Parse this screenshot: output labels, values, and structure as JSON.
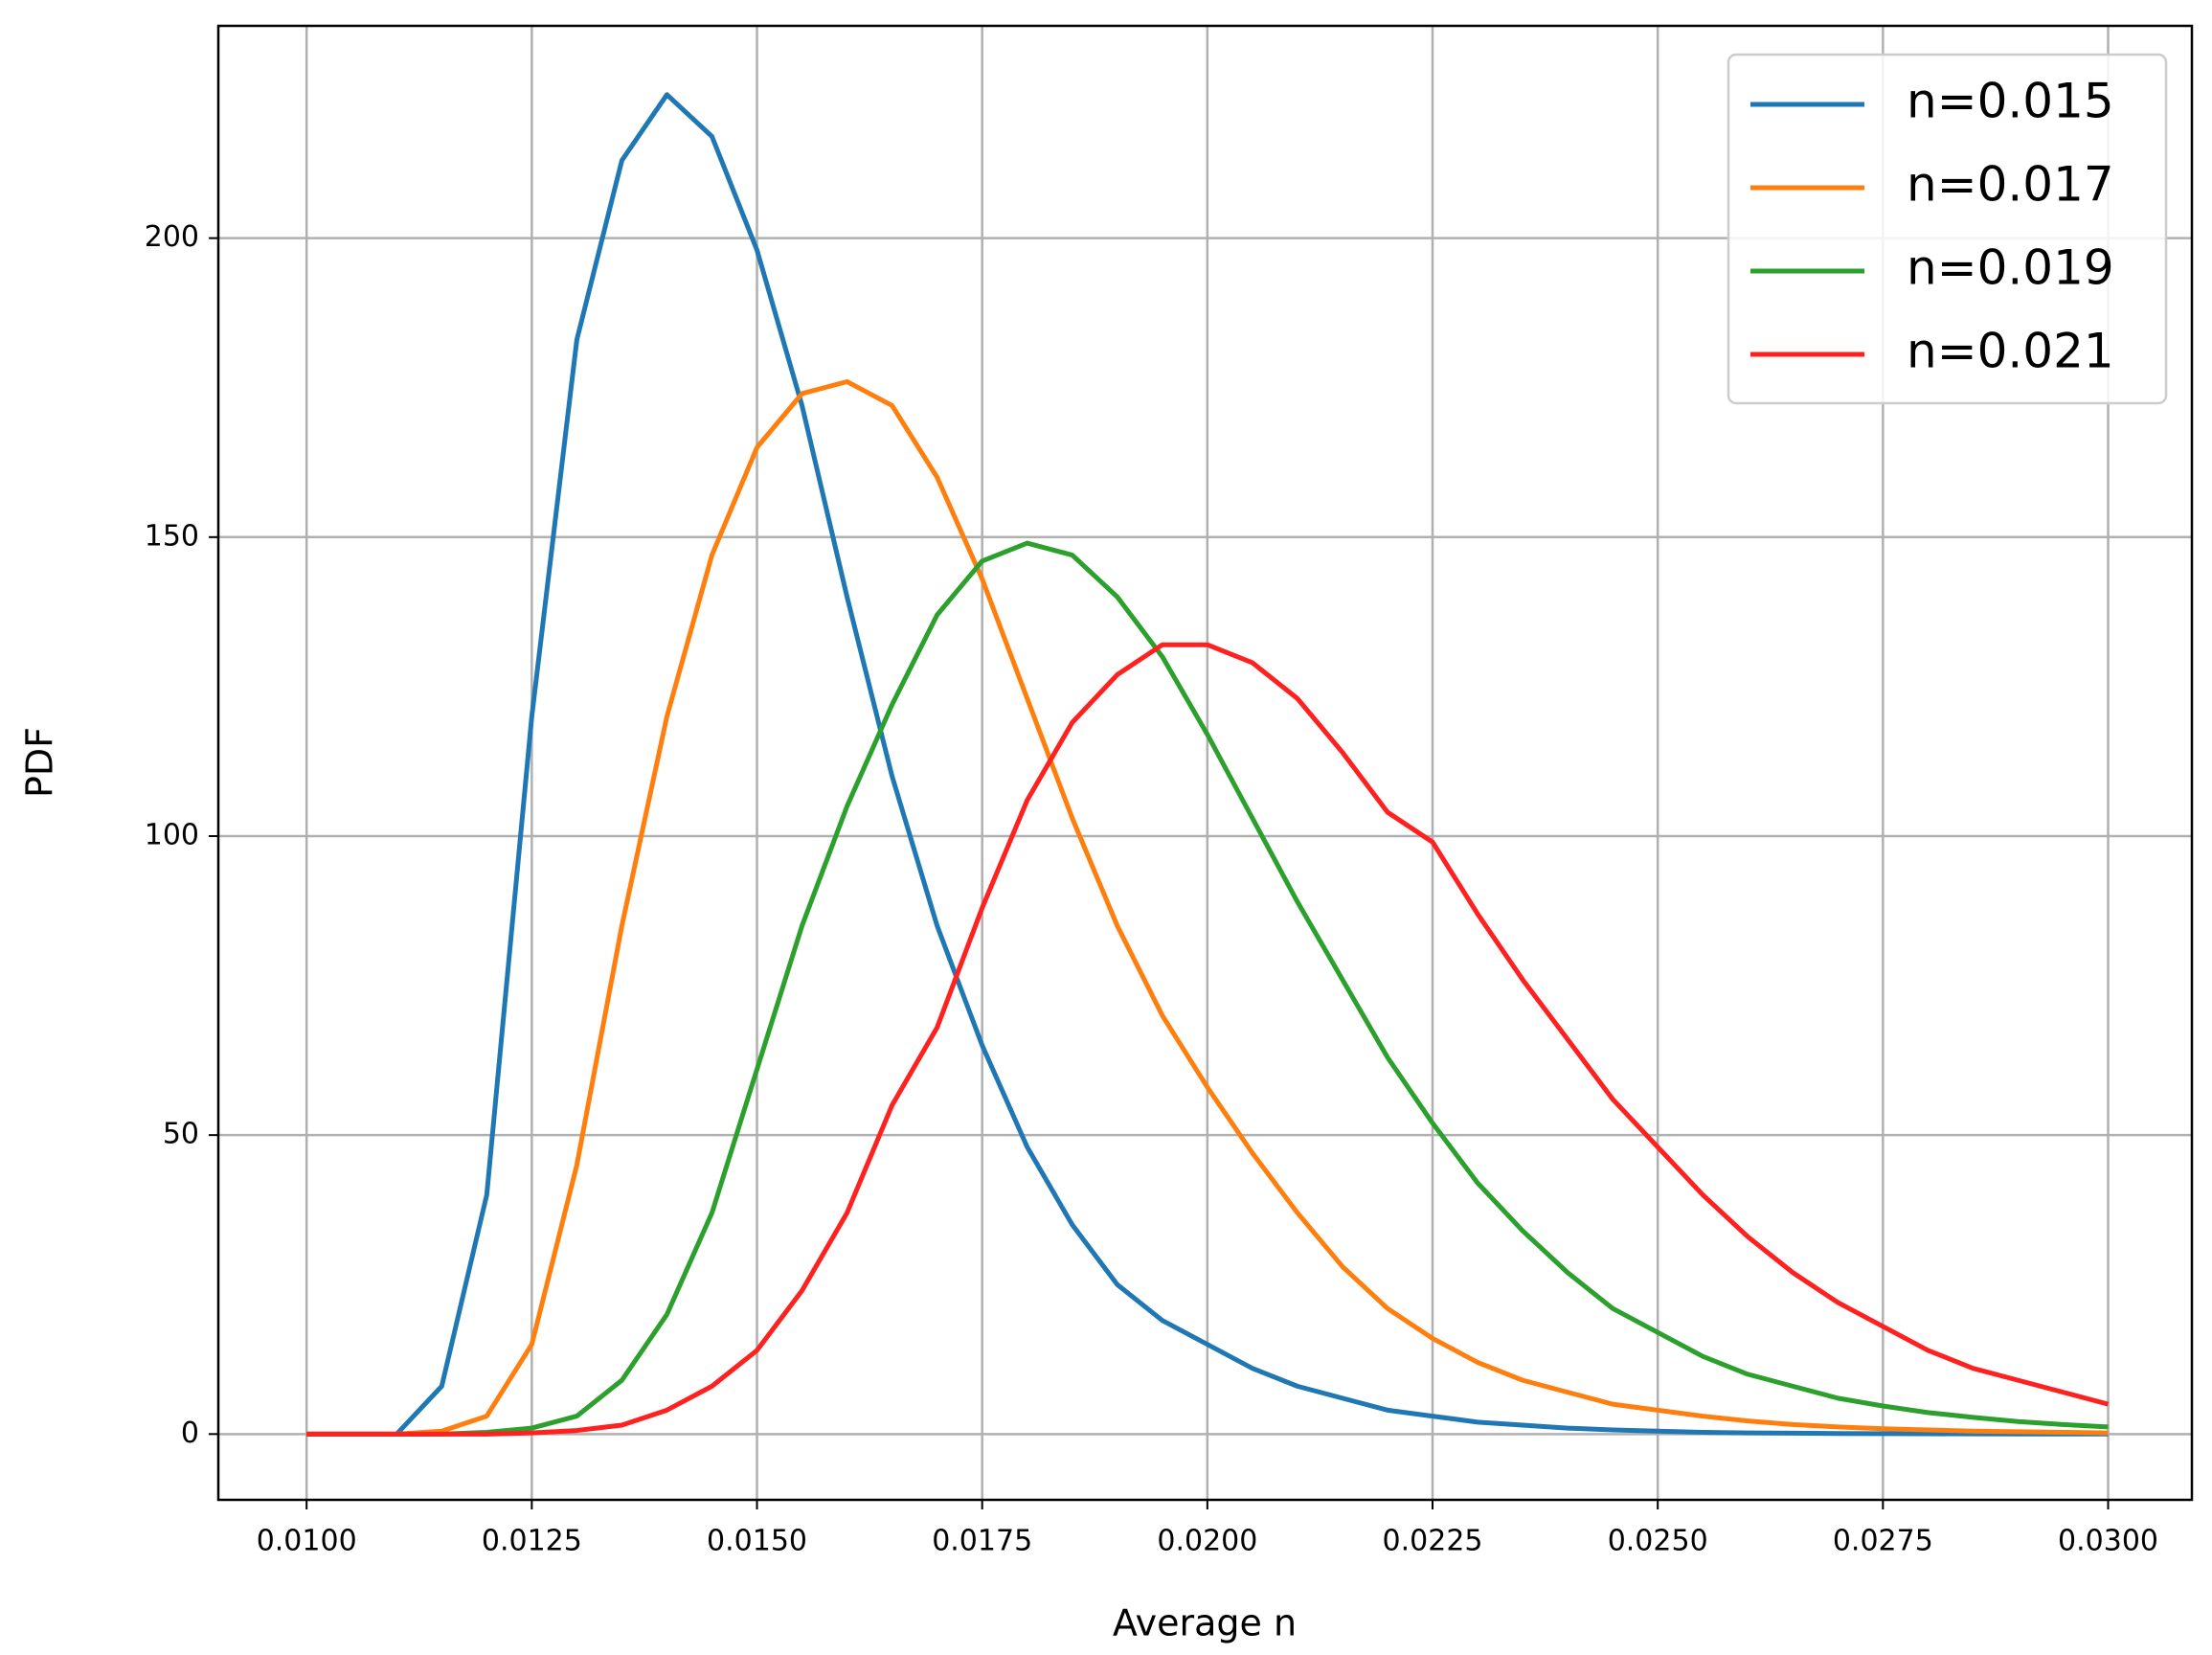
{
  "chart_data": {
    "type": "line",
    "xlabel": "Average n",
    "ylabel": "PDF",
    "x": [
      0.01,
      0.0105,
      0.011,
      0.0115,
      0.012,
      0.0125,
      0.013,
      0.0135,
      0.014,
      0.0145,
      0.015,
      0.0155,
      0.016,
      0.0165,
      0.017,
      0.0175,
      0.018,
      0.0185,
      0.019,
      0.0195,
      0.02,
      0.0205,
      0.021,
      0.0215,
      0.022,
      0.0225,
      0.023,
      0.0235,
      0.024,
      0.0245,
      0.025,
      0.0255,
      0.026,
      0.0265,
      0.027,
      0.0275,
      0.028,
      0.0285,
      0.029,
      0.0295,
      0.03
    ],
    "series": [
      {
        "name": "n=0.015",
        "color": "#1f77b4",
        "values": [
          0,
          0,
          0,
          8,
          40,
          120,
          183,
          213,
          224,
          217,
          198,
          172,
          140,
          110,
          85,
          65,
          48,
          35,
          25,
          19,
          15,
          11,
          8,
          6,
          4,
          3,
          2,
          1.5,
          1,
          0.7,
          0.5,
          0.3,
          0.2,
          0.15,
          0.1,
          0.07,
          0.05,
          0.03,
          0.02,
          0.01,
          0.01
        ]
      },
      {
        "name": "n=0.017",
        "color": "#ff7f0e",
        "values": [
          0,
          0,
          0,
          0.5,
          3,
          15,
          45,
          85,
          120,
          147,
          165,
          174,
          176,
          172,
          160,
          143,
          123,
          103,
          85,
          70,
          58,
          47,
          37,
          28,
          21,
          16,
          12,
          9,
          7,
          5,
          4,
          3,
          2.2,
          1.6,
          1.2,
          0.9,
          0.7,
          0.5,
          0.4,
          0.3,
          0.2
        ]
      },
      {
        "name": "n=0.019",
        "color": "#2ca02c",
        "values": [
          0,
          0,
          0,
          0,
          0.3,
          1,
          3,
          9,
          20,
          37,
          61,
          85,
          105,
          122,
          137,
          146,
          149,
          147,
          140,
          130,
          117,
          103,
          89,
          76,
          63,
          52,
          42,
          34,
          27,
          21,
          17,
          13,
          10,
          8,
          6,
          4.7,
          3.6,
          2.8,
          2.1,
          1.6,
          1.2
        ]
      },
      {
        "name": "n=0.021",
        "color": "#ff2020",
        "values": [
          0,
          0,
          0,
          0,
          0,
          0.2,
          0.6,
          1.5,
          4,
          8,
          14,
          24,
          37,
          55,
          68,
          88,
          106,
          119,
          127,
          132,
          132,
          129,
          123,
          114,
          104,
          99,
          87,
          76,
          66,
          56,
          48,
          40,
          33,
          27,
          22,
          18,
          14,
          11,
          9,
          7,
          5
        ]
      }
    ],
    "xlim": [
      0.00902,
      0.03093
    ],
    "ylim": [
      -11,
      235.5
    ],
    "xticks": [
      {
        "value": 0.01,
        "label": "0.0100"
      },
      {
        "value": 0.0125,
        "label": "0.0125"
      },
      {
        "value": 0.015,
        "label": "0.0150"
      },
      {
        "value": 0.0175,
        "label": "0.0175"
      },
      {
        "value": 0.02,
        "label": "0.0200"
      },
      {
        "value": 0.0225,
        "label": "0.0225"
      },
      {
        "value": 0.025,
        "label": "0.0250"
      },
      {
        "value": 0.0275,
        "label": "0.0275"
      },
      {
        "value": 0.03,
        "label": "0.0300"
      }
    ],
    "yticks": [
      0,
      50,
      100,
      150,
      200
    ],
    "grid": true,
    "legend": "upper-right"
  }
}
